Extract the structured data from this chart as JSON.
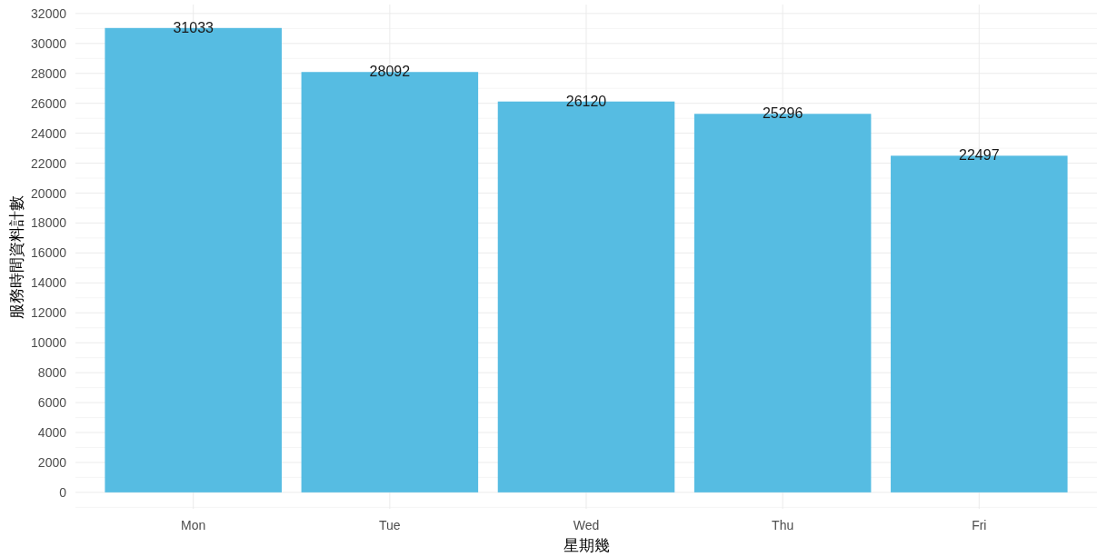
{
  "chart_data": {
    "type": "bar",
    "xlabel": "星期幾",
    "ylabel": "服務時間資料計數",
    "categories": [
      "Mon",
      "Tue",
      "Wed",
      "Thu",
      "Fri"
    ],
    "values": [
      31033,
      28092,
      26120,
      25296,
      22497
    ],
    "color": "#56bce2",
    "ylim": [
      -1100,
      32600
    ],
    "yticks": [
      0,
      2000,
      4000,
      6000,
      8000,
      10000,
      12000,
      14000,
      16000,
      18000,
      20000,
      22000,
      24000,
      26000,
      28000,
      30000,
      32000
    ],
    "grid": true,
    "data_labels": true
  }
}
